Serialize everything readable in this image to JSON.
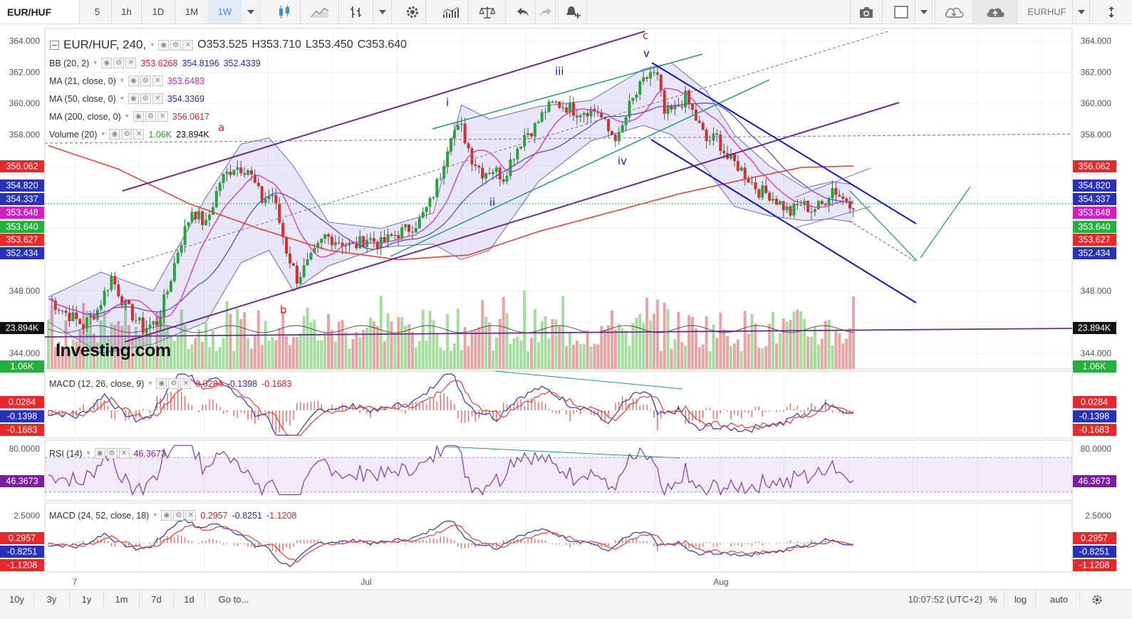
{
  "toolbar": {
    "symbol": "EUR/HUF",
    "intervals": [
      "5",
      "1h",
      "1D",
      "1M",
      "1W"
    ],
    "active_interval": "1W",
    "right_symbol": "EURHUF"
  },
  "legend": {
    "title": "EUR/HUF, 240,",
    "open": "O353.525",
    "high": "H353.710",
    "low": "L353.450",
    "close": "C353.640",
    "studies": [
      {
        "name": "BB (20, 2)",
        "values": [
          "353.6268",
          "354.8196",
          "352.4339"
        ],
        "colors": [
          "#d62728",
          "#2c2ca8",
          "#2c2ca8"
        ]
      },
      {
        "name": "MA (21, close, 0)",
        "values": [
          "353.6483"
        ],
        "colors": [
          "#d31fc1"
        ]
      },
      {
        "name": "MA (50, close, 0)",
        "values": [
          "354.3369"
        ],
        "colors": [
          "#2c2ca8"
        ]
      },
      {
        "name": "MA (200, close, 0)",
        "values": [
          "356.0617"
        ],
        "colors": [
          "#d62728"
        ]
      },
      {
        "name": "Volume (20)",
        "values": [
          "1.06K",
          "23.894K"
        ],
        "colors": [
          "#2ca02c",
          "#111111"
        ]
      }
    ]
  },
  "panes": {
    "macd1": {
      "name": "MACD (12, 26, close, 9)",
      "values": [
        "0.0284",
        "-0.1398",
        "-0.1683"
      ],
      "colors": [
        "#d62728",
        "#2c2ca8",
        "#d62728"
      ]
    },
    "rsi": {
      "name": "RSI (14)",
      "values": [
        "46.3673"
      ],
      "colors": [
        "#7b1fa2"
      ]
    },
    "macd2": {
      "name": "MACD (24, 52, close, 18)",
      "values": [
        "0.2957",
        "-0.8251",
        "-1.1208"
      ],
      "colors": [
        "#d62728",
        "#2c2ca8",
        "#d62728"
      ]
    }
  },
  "waves": [
    "a",
    "b",
    "c",
    "i",
    "ii",
    "iii",
    "iv",
    "v"
  ],
  "watermark": "Investing.com",
  "bottombar": {
    "ranges": [
      "10y",
      "3y",
      "1y",
      "1m",
      "7d",
      "1d",
      "Go to..."
    ],
    "clock": "10:07:52 (UTC+2)",
    "options": [
      "%",
      "log",
      "auto"
    ]
  },
  "chart_data": {
    "type": "candlestick",
    "x_ticks": [
      "7",
      "Jul",
      "Aug"
    ],
    "main_pane": {
      "y_ticks": [
        364.0,
        362.0,
        360.0,
        358.0,
        348.0,
        344.0
      ],
      "y_range": [
        343.0,
        364.8
      ],
      "price_tags": [
        {
          "label": "356.062",
          "value": 356.062,
          "color": "#e8282b"
        },
        {
          "label": "354.820",
          "value": 354.82,
          "color": "#2732b8"
        },
        {
          "label": "354.337",
          "value": 354.337,
          "color": "#2732b8"
        },
        {
          "label": "353.648",
          "value": 353.648,
          "color": "#d31fc1"
        },
        {
          "label": "353.640",
          "value": 353.64,
          "color": "#23b03c"
        },
        {
          "label": "353.627",
          "value": 353.627,
          "color": "#e8282b"
        },
        {
          "label": "352.434",
          "value": 352.434,
          "color": "#2732b8"
        }
      ],
      "volume_tag": {
        "label": "23.894K",
        "color": "#111111"
      },
      "volume_tag_small": {
        "label": "1.06K",
        "color": "#23b03c"
      },
      "close_path": [
        [
          0,
          347.5
        ],
        [
          5,
          346.6
        ],
        [
          10,
          345.8
        ],
        [
          14,
          346.8
        ],
        [
          18,
          348.9
        ],
        [
          22,
          347.0
        ],
        [
          27,
          345.6
        ],
        [
          31,
          346.0
        ],
        [
          34,
          348.0
        ],
        [
          37,
          350.6
        ],
        [
          41,
          353.2
        ],
        [
          45,
          352.2
        ],
        [
          49,
          355.0
        ],
        [
          53,
          356.0
        ],
        [
          57,
          355.8
        ],
        [
          61,
          353.8
        ],
        [
          64,
          354.2
        ],
        [
          68,
          350.6
        ],
        [
          71,
          348.8
        ],
        [
          75,
          350.0
        ],
        [
          79,
          351.5
        ],
        [
          83,
          351.2
        ],
        [
          87,
          350.8
        ],
        [
          91,
          351.4
        ],
        [
          95,
          351.0
        ],
        [
          99,
          351.6
        ],
        [
          103,
          352.0
        ],
        [
          106,
          352.5
        ],
        [
          109,
          353.6
        ],
        [
          112,
          355.5
        ],
        [
          115,
          358.2
        ],
        [
          118,
          358.4
        ],
        [
          121,
          356.5
        ],
        [
          124,
          355.6
        ],
        [
          127,
          355.8
        ],
        [
          130,
          355.3
        ],
        [
          133,
          356.8
        ],
        [
          136,
          358.0
        ],
        [
          139,
          358.5
        ],
        [
          142,
          359.6
        ],
        [
          145,
          360.0
        ],
        [
          148,
          359.8
        ],
        [
          151,
          359.5
        ],
        [
          154,
          359.6
        ],
        [
          157,
          359.5
        ],
        [
          160,
          358.2
        ],
        [
          163,
          357.8
        ],
        [
          166,
          359.8
        ],
        [
          169,
          361.0
        ],
        [
          172,
          362.0
        ],
        [
          174,
          361.6
        ],
        [
          176,
          359.3
        ],
        [
          179,
          359.6
        ],
        [
          182,
          360.4
        ],
        [
          185,
          359.0
        ],
        [
          188,
          357.6
        ],
        [
          191,
          357.8
        ],
        [
          194,
          356.5
        ],
        [
          197,
          356.0
        ],
        [
          200,
          355.2
        ],
        [
          203,
          354.4
        ],
        [
          206,
          354.2
        ],
        [
          209,
          353.6
        ],
        [
          212,
          353.0
        ],
        [
          215,
          353.6
        ],
        [
          218,
          353.2
        ],
        [
          221,
          353.5
        ],
        [
          224,
          354.6
        ],
        [
          227,
          353.9
        ],
        [
          230,
          353.6
        ]
      ],
      "ma200": [
        [
          0,
          357.3
        ],
        [
          20,
          355.8
        ],
        [
          40,
          353.6
        ],
        [
          60,
          352.0
        ],
        [
          80,
          350.6
        ],
        [
          100,
          350.0
        ],
        [
          120,
          350.3
        ],
        [
          140,
          351.8
        ],
        [
          160,
          353.0
        ],
        [
          180,
          354.2
        ],
        [
          200,
          355.2
        ],
        [
          215,
          355.9
        ],
        [
          230,
          356.0
        ]
      ],
      "bb_upper": [
        [
          0,
          347.6
        ],
        [
          15,
          349.2
        ],
        [
          30,
          348.0
        ],
        [
          45,
          354.0
        ],
        [
          55,
          357.4
        ],
        [
          63,
          357.8
        ],
        [
          70,
          356.0
        ],
        [
          80,
          352.4
        ],
        [
          95,
          352.0
        ],
        [
          110,
          353.0
        ],
        [
          118,
          359.9
        ],
        [
          126,
          359.0
        ],
        [
          140,
          359.8
        ],
        [
          155,
          360.2
        ],
        [
          170,
          362.2
        ],
        [
          178,
          362.6
        ],
        [
          188,
          360.8
        ],
        [
          196,
          358.0
        ],
        [
          206,
          356.0
        ],
        [
          216,
          354.6
        ],
        [
          224,
          355.0
        ],
        [
          230,
          354.8
        ]
      ],
      "bb_lower": [
        [
          0,
          346.0
        ],
        [
          15,
          344.0
        ],
        [
          30,
          344.6
        ],
        [
          45,
          346.0
        ],
        [
          55,
          349.8
        ],
        [
          63,
          350.6
        ],
        [
          70,
          348.0
        ],
        [
          80,
          349.6
        ],
        [
          95,
          350.8
        ],
        [
          110,
          351.0
        ],
        [
          118,
          350.0
        ],
        [
          126,
          350.6
        ],
        [
          140,
          355.0
        ],
        [
          155,
          357.6
        ],
        [
          170,
          358.6
        ],
        [
          178,
          358.0
        ],
        [
          188,
          355.8
        ],
        [
          196,
          353.4
        ],
        [
          206,
          352.8
        ],
        [
          216,
          352.5
        ],
        [
          224,
          352.6
        ],
        [
          230,
          352.4
        ]
      ]
    },
    "macd1": {
      "y_range": [
        -0.6,
        0.6
      ],
      "signal": 0.0284,
      "macd": -0.1398,
      "hist": -0.1683
    },
    "rsi": {
      "y_ticks": [
        80.0
      ],
      "y_range": [
        20,
        90
      ],
      "value": 46.3673,
      "upper": 70,
      "lower": 30
    },
    "macd2": {
      "y_ticks": [
        2.5
      ],
      "y_range": [
        -2.0,
        3.0
      ],
      "value": 0.2957
    }
  }
}
